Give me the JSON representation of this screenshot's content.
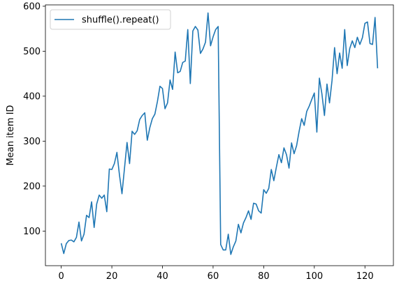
{
  "chart_data": {
    "type": "line",
    "title": "",
    "xlabel": "",
    "ylabel": "Mean item ID",
    "xlim": [
      -6.25,
      131.25
    ],
    "ylim": [
      23,
      603
    ],
    "xticks": [
      0,
      20,
      40,
      60,
      80,
      100,
      120
    ],
    "yticks": [
      100,
      200,
      300,
      400,
      500,
      600
    ],
    "grid": false,
    "legend_position": "upper-left",
    "series": [
      {
        "name": "shuffle().repeat()",
        "color": "#1f77b4",
        "x": [
          0,
          1,
          2,
          3,
          4,
          5,
          6,
          7,
          8,
          9,
          10,
          11,
          12,
          13,
          14,
          15,
          16,
          17,
          18,
          19,
          20,
          21,
          22,
          23,
          24,
          25,
          26,
          27,
          28,
          29,
          30,
          31,
          32,
          33,
          34,
          35,
          36,
          37,
          38,
          39,
          40,
          41,
          42,
          43,
          44,
          45,
          46,
          47,
          48,
          49,
          50,
          51,
          52,
          53,
          54,
          55,
          56,
          57,
          58,
          59,
          60,
          61,
          62,
          63,
          64,
          65,
          66,
          67,
          68,
          69,
          70,
          71,
          72,
          73,
          74,
          75,
          76,
          77,
          78,
          79,
          80,
          81,
          82,
          83,
          84,
          85,
          86,
          87,
          88,
          89,
          90,
          91,
          92,
          93,
          94,
          95,
          96,
          97,
          98,
          99,
          100,
          101,
          102,
          103,
          104,
          105,
          106,
          107,
          108,
          109,
          110,
          111,
          112,
          113,
          114,
          115,
          116,
          117,
          118,
          119,
          120,
          121,
          122,
          123,
          124,
          125
        ],
        "values": [
          73,
          50,
          72,
          79,
          80,
          76,
          86,
          120,
          78,
          93,
          135,
          130,
          165,
          108,
          160,
          180,
          173,
          180,
          143,
          238,
          237,
          250,
          275,
          225,
          183,
          240,
          297,
          250,
          322,
          315,
          323,
          348,
          357,
          363,
          302,
          330,
          350,
          360,
          388,
          422,
          417,
          372,
          385,
          436,
          415,
          498,
          452,
          455,
          475,
          478,
          548,
          428,
          545,
          555,
          547,
          495,
          505,
          520,
          585,
          512,
          532,
          548,
          555,
          70,
          58,
          58,
          93,
          48,
          65,
          78,
          115,
          96,
          118,
          130,
          145,
          126,
          162,
          160,
          145,
          140,
          192,
          184,
          195,
          237,
          212,
          242,
          270,
          252,
          285,
          270,
          240,
          296,
          272,
          290,
          322,
          350,
          335,
          366,
          378,
          393,
          407,
          320,
          440,
          405,
          357,
          427,
          385,
          435,
          508,
          450,
          496,
          462,
          548,
          468,
          506,
          523,
          508,
          531,
          515,
          530,
          562,
          565,
          517,
          515,
          575,
          462
        ]
      }
    ]
  }
}
